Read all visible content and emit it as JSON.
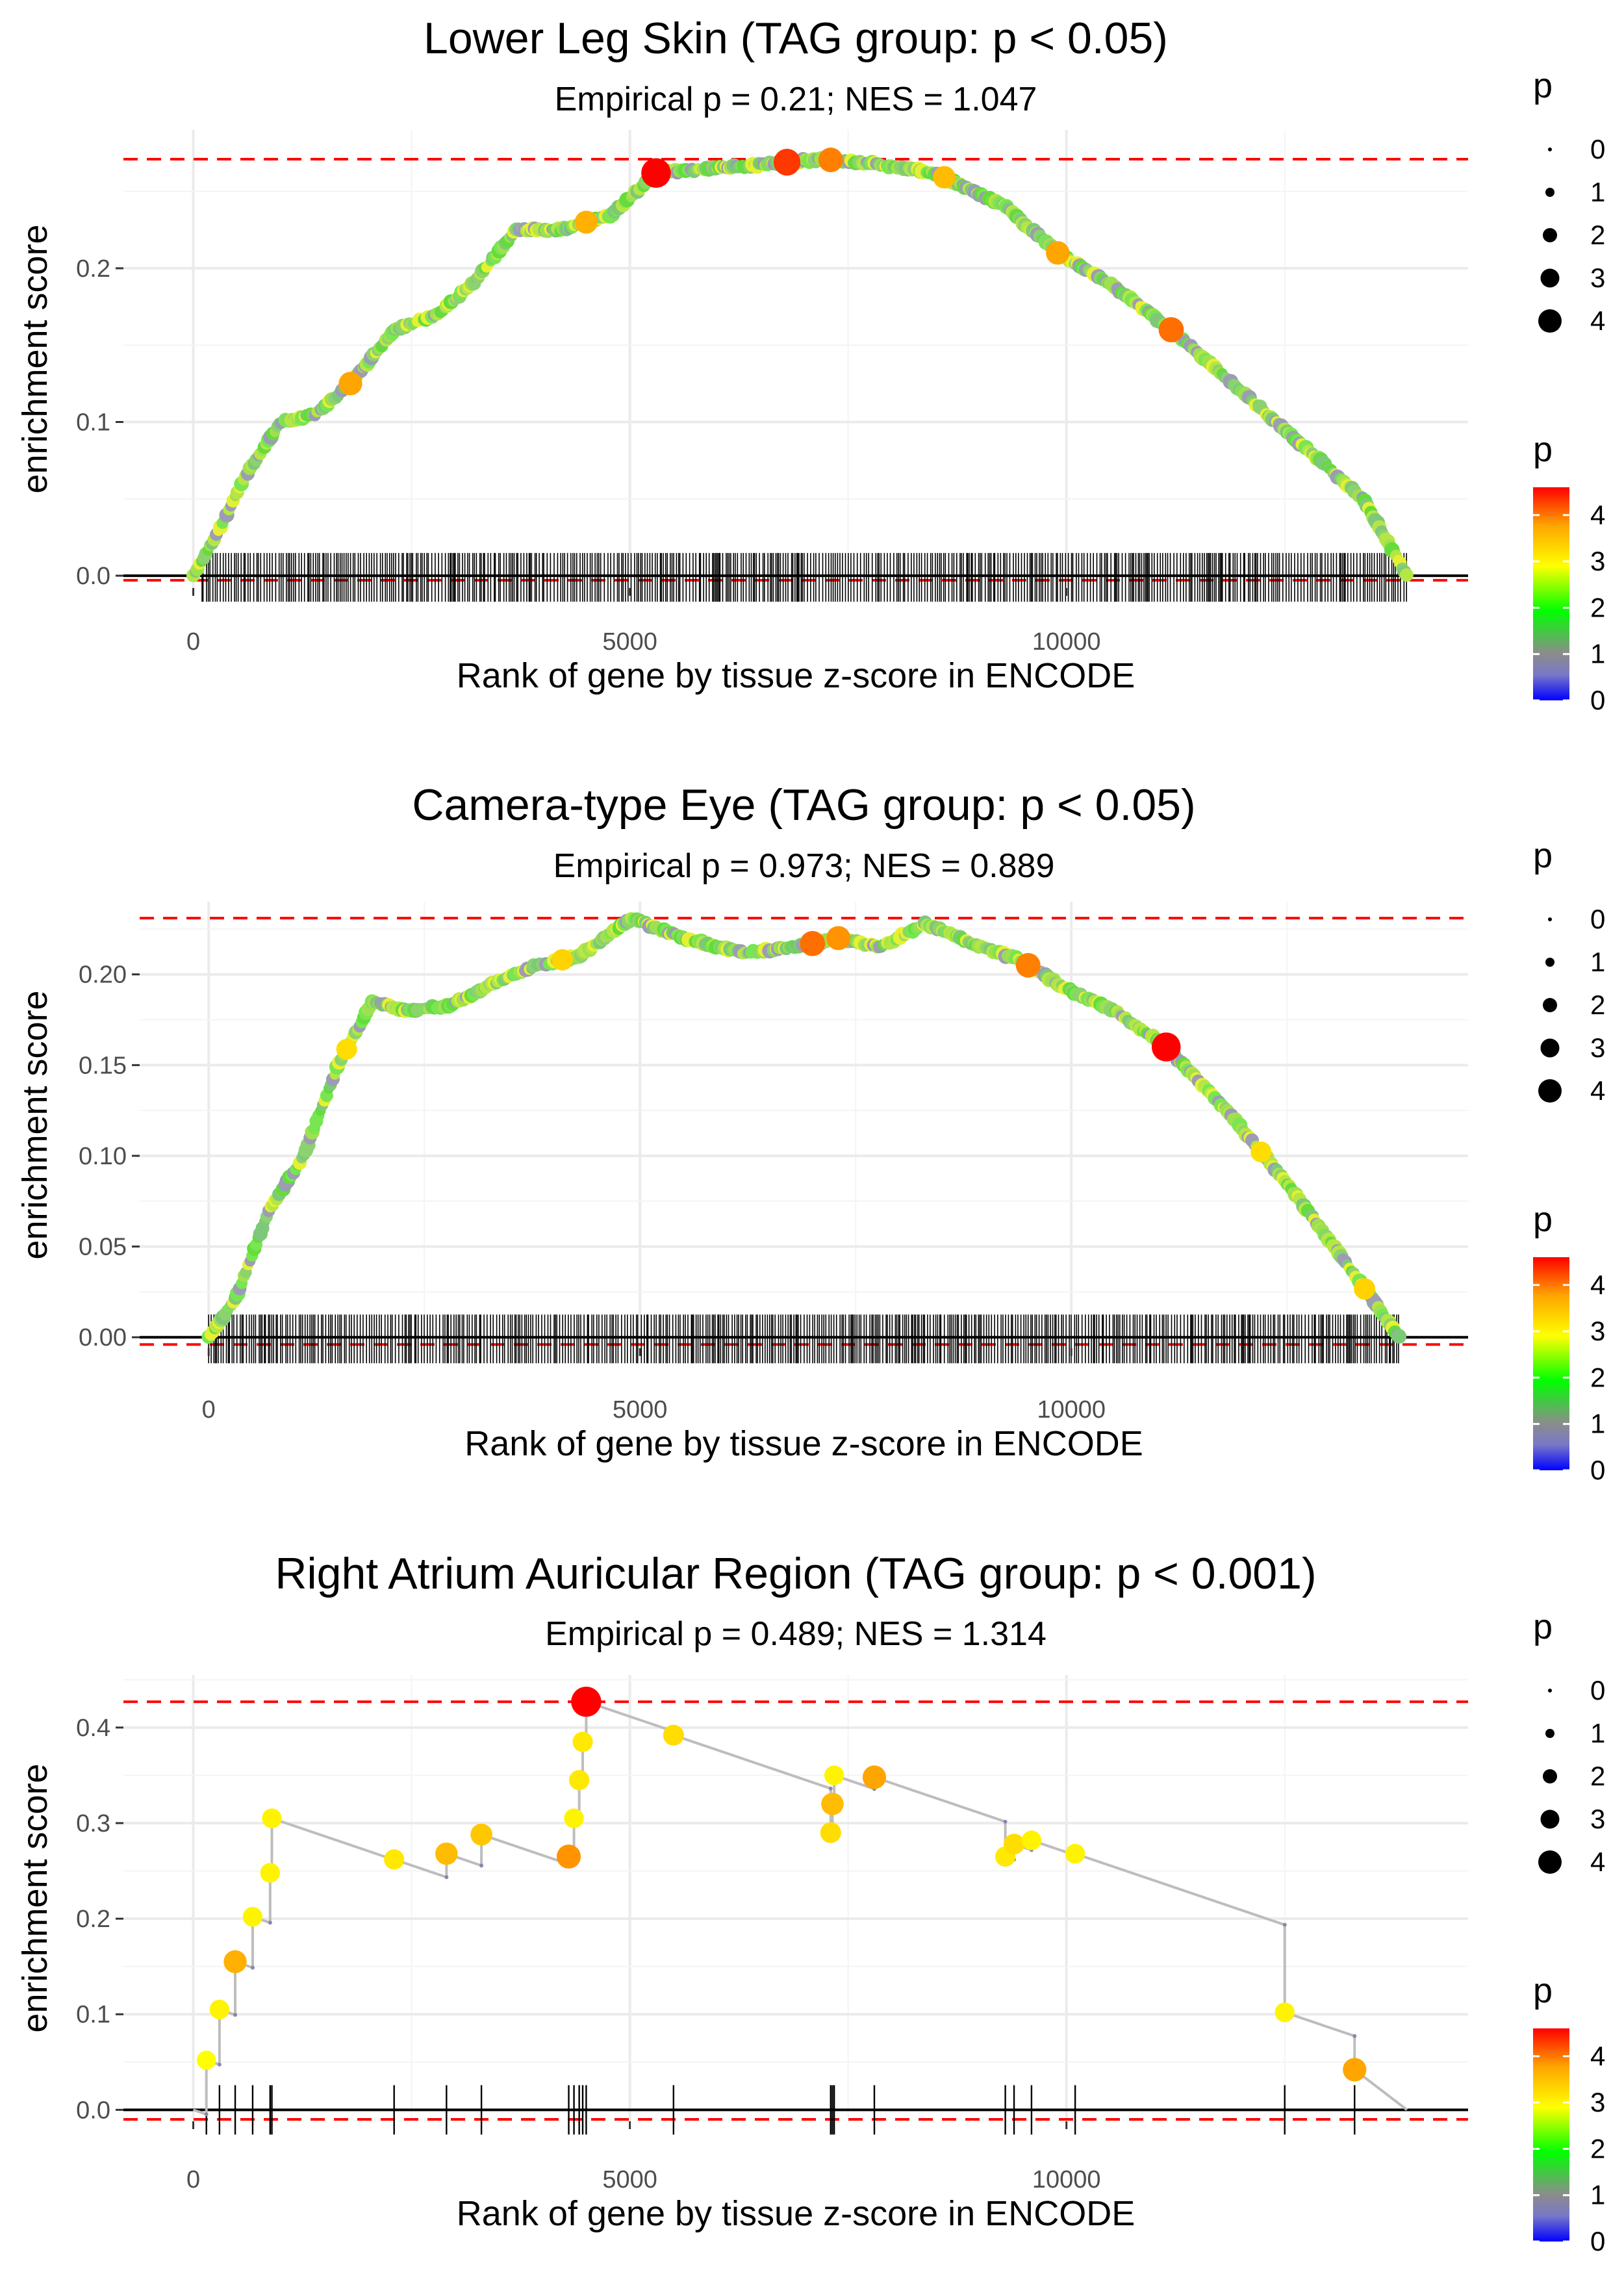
{
  "chart_data": [
    {
      "type": "line",
      "title": "Lower Leg Skin (TAG group: p < 0.05)",
      "subtitle": "Empirical p = 0.21; NES = 1.047",
      "xlabel": "Rank of gene by tissue z-score in ENCODE",
      "ylabel": "enrichment score",
      "xlim": [
        -800,
        14600
      ],
      "ylim": [
        -0.008,
        0.29
      ],
      "xticks": [
        0,
        5000,
        10000
      ],
      "xtick_labels": [
        "0",
        "5000",
        "10000"
      ],
      "yticks": [
        0.0,
        0.1,
        0.2
      ],
      "ytick_labels": [
        "0.0",
        "0.1",
        "0.2"
      ],
      "max_es": 0.271,
      "min_es": -0.003,
      "dense": true,
      "curve": [
        [
          0,
          0.0
        ],
        [
          300,
          0.03
        ],
        [
          600,
          0.065
        ],
        [
          1000,
          0.1
        ],
        [
          1400,
          0.105
        ],
        [
          1800,
          0.125
        ],
        [
          2300,
          0.16
        ],
        [
          2800,
          0.17
        ],
        [
          3200,
          0.19
        ],
        [
          3700,
          0.225
        ],
        [
          4200,
          0.225
        ],
        [
          4800,
          0.235
        ],
        [
          5300,
          0.262
        ],
        [
          6000,
          0.265
        ],
        [
          6600,
          0.268
        ],
        [
          7200,
          0.271
        ],
        [
          7800,
          0.268
        ],
        [
          8500,
          0.262
        ],
        [
          9300,
          0.24
        ],
        [
          9900,
          0.21
        ],
        [
          10500,
          0.19
        ],
        [
          11200,
          0.16
        ],
        [
          12000,
          0.12
        ],
        [
          12800,
          0.08
        ],
        [
          13400,
          0.05
        ],
        [
          13900,
          0.0
        ]
      ],
      "hits_range": [
        100,
        13900
      ],
      "highlight_points": [
        {
          "x": 1800,
          "p": 3.6
        },
        {
          "x": 4500,
          "p": 3.5
        },
        {
          "x": 5300,
          "p": 4.7
        },
        {
          "x": 6800,
          "p": 4.2
        },
        {
          "x": 7300,
          "p": 3.8
        },
        {
          "x": 8600,
          "p": 3.4
        },
        {
          "x": 9900,
          "p": 3.6
        },
        {
          "x": 11200,
          "p": 3.9
        }
      ],
      "legend_size": {
        "title": "p",
        "labels": [
          "0",
          "1",
          "2",
          "3",
          "4"
        ]
      },
      "legend_color": {
        "title": "p",
        "labels": [
          "4",
          "3",
          "2",
          "1",
          "0"
        ]
      }
    },
    {
      "type": "line",
      "title": "Camera-type Eye (TAG group: p < 0.05)",
      "subtitle": "Empirical p = 0.973; NES = 0.889",
      "xlabel": "Rank of gene by tissue z-score in ENCODE",
      "ylabel": "enrichment score",
      "xlim": [
        -800,
        14600
      ],
      "ylim": [
        -0.006,
        0.24
      ],
      "xticks": [
        0,
        5000,
        10000
      ],
      "xtick_labels": [
        "0",
        "5000",
        "10000"
      ],
      "yticks": [
        0.0,
        0.05,
        0.1,
        0.15,
        0.2
      ],
      "ytick_labels": [
        "0.00",
        "0.05",
        "0.10",
        "0.15",
        "0.20"
      ],
      "max_es": 0.231,
      "min_es": -0.004,
      "dense": true,
      "curve": [
        [
          0,
          0.0
        ],
        [
          300,
          0.02
        ],
        [
          700,
          0.07
        ],
        [
          1100,
          0.1
        ],
        [
          1500,
          0.15
        ],
        [
          1900,
          0.185
        ],
        [
          2300,
          0.18
        ],
        [
          2800,
          0.183
        ],
        [
          3300,
          0.195
        ],
        [
          3800,
          0.205
        ],
        [
          4300,
          0.21
        ],
        [
          4900,
          0.231
        ],
        [
          5500,
          0.22
        ],
        [
          6200,
          0.212
        ],
        [
          6800,
          0.215
        ],
        [
          7300,
          0.22
        ],
        [
          7800,
          0.215
        ],
        [
          8300,
          0.228
        ],
        [
          8800,
          0.218
        ],
        [
          9400,
          0.208
        ],
        [
          9900,
          0.193
        ],
        [
          10500,
          0.18
        ],
        [
          11100,
          0.16
        ],
        [
          11800,
          0.125
        ],
        [
          12500,
          0.085
        ],
        [
          13200,
          0.04
        ],
        [
          13800,
          0.0
        ]
      ],
      "hits_range": [
        0,
        13800
      ],
      "highlight_points": [
        {
          "x": 1600,
          "p": 3.1
        },
        {
          "x": 4100,
          "p": 3.2
        },
        {
          "x": 7000,
          "p": 3.9
        },
        {
          "x": 7300,
          "p": 3.7
        },
        {
          "x": 9500,
          "p": 3.8
        },
        {
          "x": 11100,
          "p": 4.6
        },
        {
          "x": 12200,
          "p": 3.1
        },
        {
          "x": 13400,
          "p": 3.2
        }
      ],
      "legend_size": {
        "title": "p",
        "labels": [
          "0",
          "1",
          "2",
          "3",
          "4"
        ]
      },
      "legend_color": {
        "title": "p",
        "labels": [
          "4",
          "3",
          "2",
          "1",
          "0"
        ]
      }
    },
    {
      "type": "line",
      "title": "Right Atrium Auricular Region (TAG group: p < 0.001)",
      "subtitle": "Empirical p = 0.489; NES = 1.314",
      "xlabel": "Rank of gene by tissue z-score in ENCODE",
      "ylabel": "enrichment score",
      "xlim": [
        -800,
        14600
      ],
      "ylim": [
        -0.012,
        0.455
      ],
      "xticks": [
        0,
        5000,
        10000
      ],
      "xtick_labels": [
        "0",
        "5000",
        "10000"
      ],
      "yticks": [
        0.0,
        0.1,
        0.2,
        0.3,
        0.4
      ],
      "ytick_labels": [
        "0.0",
        "0.1",
        "0.2",
        "0.3",
        "0.4"
      ],
      "max_es": 0.427,
      "min_es": -0.01,
      "dense": false,
      "points": [
        {
          "x": 150,
          "es": 0.052,
          "p": 2.8
        },
        {
          "x": 300,
          "es": 0.105,
          "p": 2.9
        },
        {
          "x": 480,
          "es": 0.155,
          "p": 3.5
        },
        {
          "x": 680,
          "es": 0.202,
          "p": 2.9
        },
        {
          "x": 880,
          "es": 0.248,
          "p": 2.9
        },
        {
          "x": 900,
          "es": 0.305,
          "p": 2.9
        },
        {
          "x": 2300,
          "es": 0.262,
          "p": 3.0
        },
        {
          "x": 2900,
          "es": 0.268,
          "p": 3.4
        },
        {
          "x": 3300,
          "es": 0.288,
          "p": 3.3
        },
        {
          "x": 4300,
          "es": 0.265,
          "p": 3.7
        },
        {
          "x": 4360,
          "es": 0.305,
          "p": 2.9
        },
        {
          "x": 4420,
          "es": 0.345,
          "p": 3.0
        },
        {
          "x": 4460,
          "es": 0.385,
          "p": 3.0
        },
        {
          "x": 4500,
          "es": 0.427,
          "p": 4.8
        },
        {
          "x": 5500,
          "es": 0.392,
          "p": 3.1
        },
        {
          "x": 7300,
          "es": 0.29,
          "p": 3.1
        },
        {
          "x": 7320,
          "es": 0.32,
          "p": 3.4
        },
        {
          "x": 7340,
          "es": 0.35,
          "p": 2.9
        },
        {
          "x": 7800,
          "es": 0.348,
          "p": 3.6
        },
        {
          "x": 9300,
          "es": 0.265,
          "p": 3.0
        },
        {
          "x": 9400,
          "es": 0.278,
          "p": 3.1
        },
        {
          "x": 9600,
          "es": 0.282,
          "p": 2.9
        },
        {
          "x": 10100,
          "es": 0.268,
          "p": 2.9
        },
        {
          "x": 12500,
          "es": 0.102,
          "p": 2.9
        },
        {
          "x": 13300,
          "es": 0.042,
          "p": 3.6
        }
      ],
      "end_x": 13900,
      "legend_size": {
        "title": "p",
        "labels": [
          "0",
          "1",
          "2",
          "3",
          "4"
        ]
      },
      "legend_color": {
        "title": "p",
        "labels": [
          "4",
          "3",
          "2",
          "1",
          "0"
        ]
      }
    }
  ]
}
